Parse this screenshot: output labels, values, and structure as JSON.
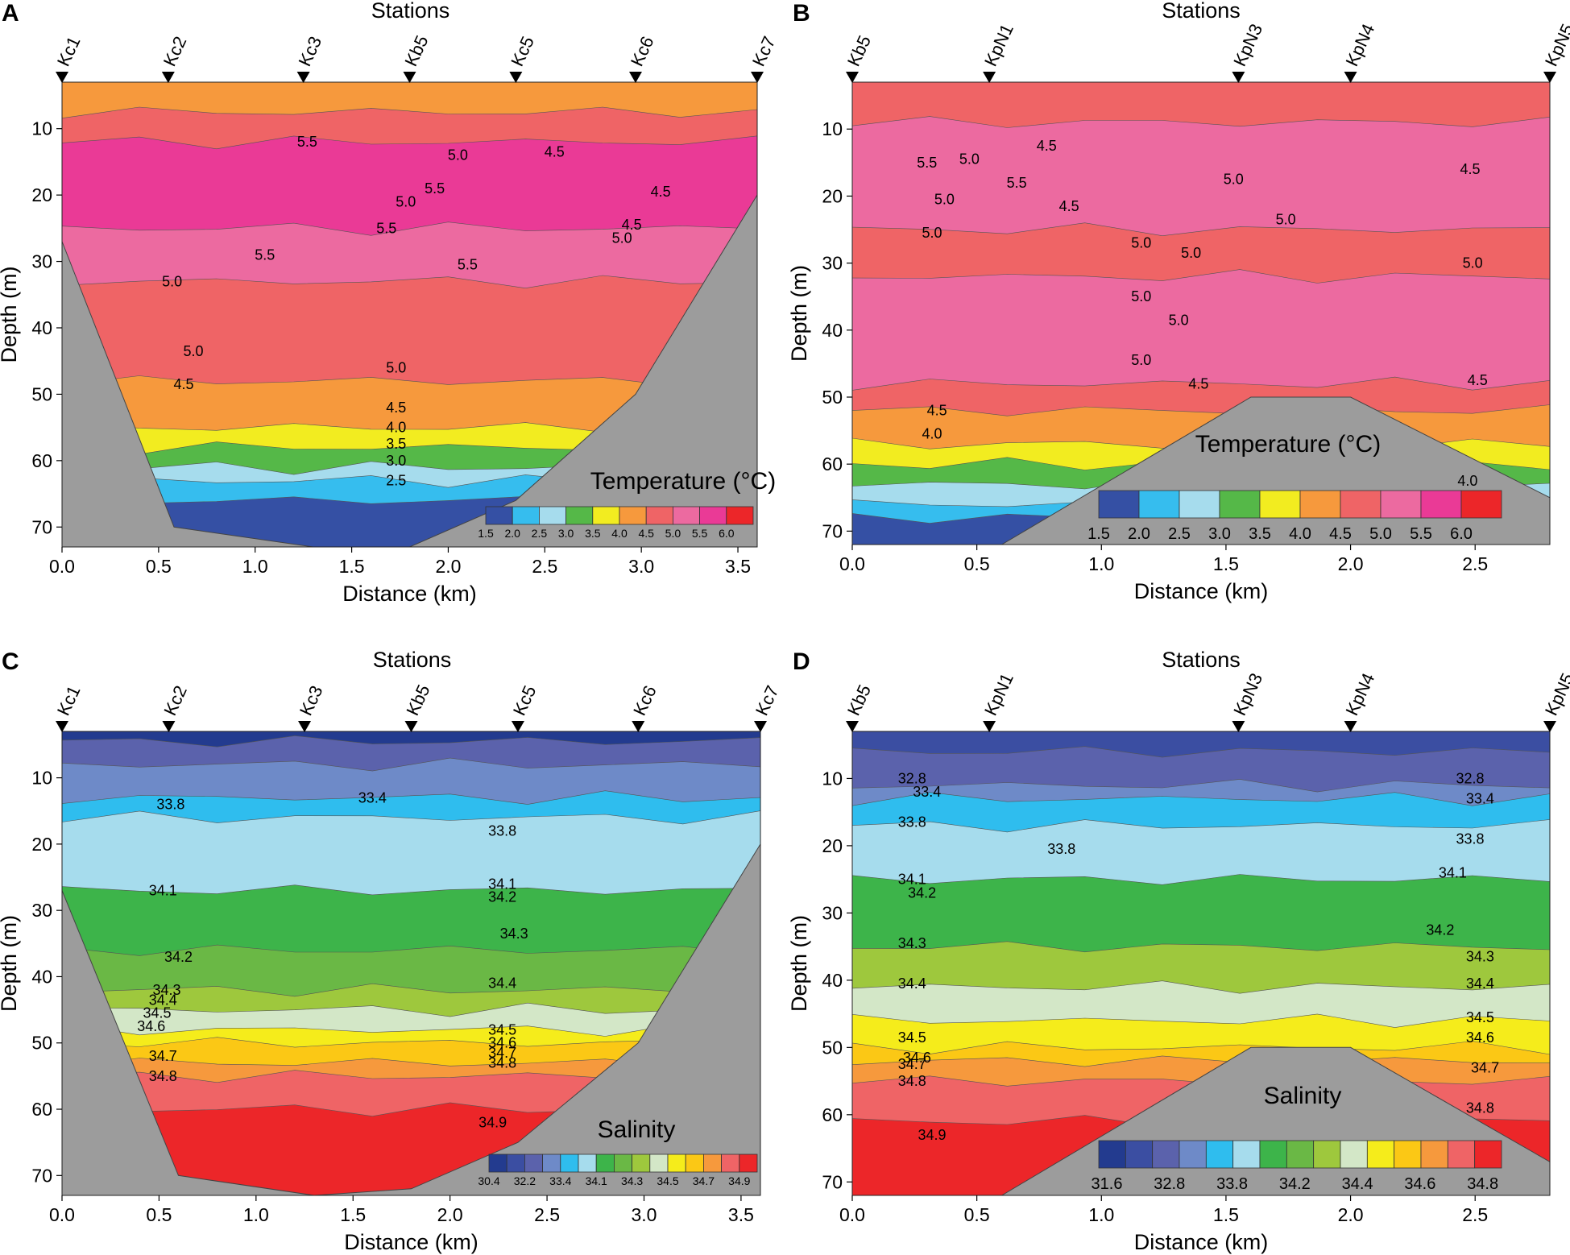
{
  "figure": {
    "colors": {
      "terrain": "#9c9c9c",
      "temperature": [
        "#3550a4",
        "#36bdee",
        "#a6dced",
        "#55b848",
        "#f2ec20",
        "#f6993d",
        "#ef6466",
        "#ec6aa0",
        "#ea3a96",
        "#ec2629"
      ],
      "salinity": [
        "#233b8f",
        "#3b4ea2",
        "#5b62ac",
        "#6e8ac8",
        "#2fbdee",
        "#a6dced",
        "#3db44a",
        "#6ab845",
        "#9ec83d",
        "#d3e7c7",
        "#f5ec1b",
        "#fbc815",
        "#f6993d",
        "#ef6466",
        "#ec2629"
      ]
    }
  },
  "chart_data": [
    {
      "panel": "A",
      "type": "contour",
      "title": "Stations",
      "xlabel": "Distance (km)",
      "ylabel": "Depth (m)",
      "xlim": [
        0,
        3.6
      ],
      "ylim": [
        73,
        3
      ],
      "xticks": [
        "0.0",
        "0.5",
        "1.0",
        "1.5",
        "2.0",
        "2.5",
        "3.0",
        "3.5"
      ],
      "yticks": [
        "10",
        "20",
        "30",
        "40",
        "50",
        "60",
        "70"
      ],
      "stations": [
        {
          "name": "Kc1",
          "x": 0.0
        },
        {
          "name": "Kc2",
          "x": 0.55
        },
        {
          "name": "Kc3",
          "x": 1.25
        },
        {
          "name": "Kb5",
          "x": 1.8
        },
        {
          "name": "Kc5",
          "x": 2.35
        },
        {
          "name": "Kc6",
          "x": 2.97
        },
        {
          "name": "Kc7",
          "x": 3.6
        }
      ],
      "colorbar": {
        "title": "Temperature (°C)",
        "labels": [
          "1.5",
          "2.0",
          "2.5",
          "3.0",
          "3.5",
          "4.0",
          "4.5",
          "5.0",
          "5.5",
          "6.0"
        ]
      },
      "bottom_profile": [
        {
          "x": 0.0,
          "depth": 27
        },
        {
          "x": 0.58,
          "depth": 70
        },
        {
          "x": 1.3,
          "depth": 73
        },
        {
          "x": 1.8,
          "depth": 73
        },
        {
          "x": 2.35,
          "depth": 66
        },
        {
          "x": 2.97,
          "depth": 50
        },
        {
          "x": 3.6,
          "depth": 20
        }
      ],
      "layers": [
        {
          "top": 3,
          "level": 5
        },
        {
          "top": 7.5,
          "level": 6
        },
        {
          "top": 12,
          "level": 8
        },
        {
          "top": 25,
          "level": 7
        },
        {
          "top": 33,
          "level": 6
        },
        {
          "top": 48,
          "level": 5
        },
        {
          "top": 55,
          "level": 4
        },
        {
          "top": 58,
          "level": 3
        },
        {
          "top": 61,
          "level": 2
        },
        {
          "top": 63,
          "level": 1
        },
        {
          "top": 66,
          "level": 0
        }
      ],
      "contour_labels": [
        {
          "text": "5.5",
          "x": 1.27,
          "depth": 12
        },
        {
          "text": "5.0",
          "x": 2.05,
          "depth": 14
        },
        {
          "text": "4.5",
          "x": 2.55,
          "depth": 13.5
        },
        {
          "text": "5.5",
          "x": 1.93,
          "depth": 19
        },
        {
          "text": "4.5",
          "x": 3.1,
          "depth": 19.5
        },
        {
          "text": "5.0",
          "x": 1.78,
          "depth": 21
        },
        {
          "text": "5.5",
          "x": 1.68,
          "depth": 25
        },
        {
          "text": "4.5",
          "x": 2.95,
          "depth": 24.5
        },
        {
          "text": "5.0",
          "x": 2.9,
          "depth": 26.5
        },
        {
          "text": "5.5",
          "x": 1.05,
          "depth": 29
        },
        {
          "text": "5.5",
          "x": 2.1,
          "depth": 30.5
        },
        {
          "text": "5.0",
          "x": 0.57,
          "depth": 33
        },
        {
          "text": "5.0",
          "x": 0.68,
          "depth": 43.5
        },
        {
          "text": "4.5",
          "x": 0.63,
          "depth": 48.5
        },
        {
          "text": "5.0",
          "x": 1.73,
          "depth": 46
        },
        {
          "text": "4.5",
          "x": 1.73,
          "depth": 52
        },
        {
          "text": "4.0",
          "x": 1.73,
          "depth": 55
        },
        {
          "text": "3.5",
          "x": 1.73,
          "depth": 57.5
        },
        {
          "text": "3.0",
          "x": 1.73,
          "depth": 60
        },
        {
          "text": "2.5",
          "x": 1.73,
          "depth": 63
        }
      ]
    },
    {
      "panel": "B",
      "type": "contour",
      "title": "Stations",
      "xlabel": "Distance (km)",
      "ylabel": "Depth (m)",
      "xlim": [
        0,
        2.8
      ],
      "ylim": [
        72,
        3
      ],
      "xticks": [
        "0.0",
        "0.5",
        "1.0",
        "1.5",
        "2.0",
        "2.5"
      ],
      "yticks": [
        "10",
        "20",
        "30",
        "40",
        "50",
        "60",
        "70"
      ],
      "stations": [
        {
          "name": "Kb5",
          "x": 0.0
        },
        {
          "name": "KpN1",
          "x": 0.55
        },
        {
          "name": "KpN3",
          "x": 1.55
        },
        {
          "name": "KpN4",
          "x": 2.0
        },
        {
          "name": "KpN5",
          "x": 2.8
        }
      ],
      "colorbar": {
        "title": "Temperature (°C)",
        "labels": [
          "1.5",
          "2.0",
          "2.5",
          "3.0",
          "3.5",
          "4.0",
          "4.5",
          "5.0",
          "5.5",
          "6.0"
        ]
      },
      "bottom_profile": [
        {
          "x": 0.0,
          "depth": 72
        },
        {
          "x": 0.6,
          "depth": 72
        },
        {
          "x": 1.6,
          "depth": 50
        },
        {
          "x": 2.0,
          "depth": 50
        },
        {
          "x": 2.8,
          "depth": 65
        }
      ],
      "layers": [
        {
          "top": 3,
          "level": 6
        },
        {
          "top": 9,
          "level": 7
        },
        {
          "top": 25,
          "level": 6
        },
        {
          "top": 32,
          "level": 7
        },
        {
          "top": 48,
          "level": 6
        },
        {
          "top": 52,
          "level": 5
        },
        {
          "top": 57,
          "level": 4
        },
        {
          "top": 60,
          "level": 3
        },
        {
          "top": 63,
          "level": 2
        },
        {
          "top": 66,
          "level": 1
        },
        {
          "top": 68,
          "level": 0
        }
      ],
      "contour_labels": [
        {
          "text": "4.5",
          "x": 0.78,
          "depth": 12.5
        },
        {
          "text": "5.5",
          "x": 0.3,
          "depth": 15
        },
        {
          "text": "5.0",
          "x": 0.47,
          "depth": 14.5
        },
        {
          "text": "5.5",
          "x": 0.66,
          "depth": 18
        },
        {
          "text": "5.0",
          "x": 1.53,
          "depth": 17.5
        },
        {
          "text": "4.5",
          "x": 2.48,
          "depth": 16
        },
        {
          "text": "5.0",
          "x": 0.37,
          "depth": 20.5
        },
        {
          "text": "4.5",
          "x": 0.87,
          "depth": 21.5
        },
        {
          "text": "5.0",
          "x": 1.74,
          "depth": 23.5
        },
        {
          "text": "5.0",
          "x": 0.32,
          "depth": 25.5
        },
        {
          "text": "5.0",
          "x": 1.16,
          "depth": 27
        },
        {
          "text": "5.0",
          "x": 1.36,
          "depth": 28.5
        },
        {
          "text": "5.0",
          "x": 2.49,
          "depth": 30
        },
        {
          "text": "5.0",
          "x": 1.16,
          "depth": 35
        },
        {
          "text": "5.0",
          "x": 1.31,
          "depth": 38.5
        },
        {
          "text": "5.0",
          "x": 1.16,
          "depth": 44.5
        },
        {
          "text": "4.5",
          "x": 1.39,
          "depth": 48
        },
        {
          "text": "4.5",
          "x": 2.51,
          "depth": 47.5
        },
        {
          "text": "4.5",
          "x": 0.34,
          "depth": 52
        },
        {
          "text": "4.0",
          "x": 0.32,
          "depth": 55.5
        },
        {
          "text": "4.0",
          "x": 2.47,
          "depth": 62.5
        }
      ]
    },
    {
      "panel": "C",
      "type": "contour",
      "title": "Stations",
      "xlabel": "Distance (km)",
      "ylabel": "Depth (m)",
      "xlim": [
        0,
        3.6
      ],
      "ylim": [
        73,
        3
      ],
      "xticks": [
        "0.0",
        "0.5",
        "1.0",
        "1.5",
        "2.0",
        "2.5",
        "3.0",
        "3.5"
      ],
      "yticks": [
        "10",
        "20",
        "30",
        "40",
        "50",
        "60",
        "70"
      ],
      "stations": [
        {
          "name": "Kc1",
          "x": 0.0
        },
        {
          "name": "Kc2",
          "x": 0.55
        },
        {
          "name": "Kc3",
          "x": 1.25
        },
        {
          "name": "Kb5",
          "x": 1.8
        },
        {
          "name": "Kc5",
          "x": 2.35
        },
        {
          "name": "Kc6",
          "x": 2.97
        },
        {
          "name": "Kc7",
          "x": 3.6
        }
      ],
      "colorbar": {
        "title": "Salinity",
        "labels": [
          "30.4",
          "32.2",
          "33.4",
          "34.1",
          "34.3",
          "34.5",
          "34.7",
          "34.9"
        ]
      },
      "bottom_profile": [
        {
          "x": 0.0,
          "depth": 27
        },
        {
          "x": 0.6,
          "depth": 70
        },
        {
          "x": 1.3,
          "depth": 73
        },
        {
          "x": 1.8,
          "depth": 72
        },
        {
          "x": 2.35,
          "depth": 65
        },
        {
          "x": 2.97,
          "depth": 50
        },
        {
          "x": 3.6,
          "depth": 20
        }
      ],
      "layers": [
        {
          "top": 3,
          "level": 0
        },
        {
          "top": 4.5,
          "level": 2
        },
        {
          "top": 8,
          "level": 3
        },
        {
          "top": 13,
          "level": 4
        },
        {
          "top": 16,
          "level": 5
        },
        {
          "top": 27,
          "level": 6
        },
        {
          "top": 36,
          "level": 7
        },
        {
          "top": 42,
          "level": 8
        },
        {
          "top": 45,
          "level": 9
        },
        {
          "top": 48,
          "level": 10
        },
        {
          "top": 50,
          "level": 11
        },
        {
          "top": 53,
          "level": 12
        },
        {
          "top": 55,
          "level": 13
        },
        {
          "top": 60,
          "level": 14
        }
      ],
      "contour_labels": [
        {
          "text": "33.8",
          "x": 0.56,
          "depth": 14
        },
        {
          "text": "33.4",
          "x": 1.6,
          "depth": 13
        },
        {
          "text": "33.8",
          "x": 2.27,
          "depth": 18
        },
        {
          "text": "34.1",
          "x": 0.52,
          "depth": 27
        },
        {
          "text": "34.1",
          "x": 2.27,
          "depth": 26
        },
        {
          "text": "34.2",
          "x": 2.27,
          "depth": 28
        },
        {
          "text": "34.3",
          "x": 2.33,
          "depth": 33.5
        },
        {
          "text": "34.2",
          "x": 0.6,
          "depth": 37
        },
        {
          "text": "34.4",
          "x": 2.27,
          "depth": 41
        },
        {
          "text": "34.3",
          "x": 0.54,
          "depth": 42
        },
        {
          "text": "34.4",
          "x": 0.52,
          "depth": 43.5
        },
        {
          "text": "34.5",
          "x": 0.49,
          "depth": 45.5
        },
        {
          "text": "34.6",
          "x": 0.46,
          "depth": 47.5
        },
        {
          "text": "34.5",
          "x": 2.27,
          "depth": 48
        },
        {
          "text": "34.6",
          "x": 2.27,
          "depth": 50
        },
        {
          "text": "34.7",
          "x": 2.27,
          "depth": 51.5
        },
        {
          "text": "34.7",
          "x": 0.52,
          "depth": 52
        },
        {
          "text": "34.8",
          "x": 2.27,
          "depth": 53
        },
        {
          "text": "34.8",
          "x": 0.52,
          "depth": 55
        },
        {
          "text": "34.9",
          "x": 2.22,
          "depth": 62
        }
      ]
    },
    {
      "panel": "D",
      "type": "contour",
      "title": "Stations",
      "xlabel": "Distance (km)",
      "ylabel": "Depth (m)",
      "xlim": [
        0,
        2.8
      ],
      "ylim": [
        72,
        3
      ],
      "xticks": [
        "0.0",
        "0.5",
        "1.0",
        "1.5",
        "2.0",
        "2.5"
      ],
      "yticks": [
        "10",
        "20",
        "30",
        "40",
        "50",
        "60",
        "70"
      ],
      "stations": [
        {
          "name": "Kb5",
          "x": 0.0
        },
        {
          "name": "KpN1",
          "x": 0.55
        },
        {
          "name": "KpN3",
          "x": 1.55
        },
        {
          "name": "KpN4",
          "x": 2.0
        },
        {
          "name": "KpN5",
          "x": 2.8
        }
      ],
      "colorbar": {
        "title": "Salinity",
        "labels": [
          "31.6",
          "32.8",
          "33.8",
          "34.2",
          "34.4",
          "34.6",
          "34.8"
        ]
      },
      "bottom_profile": [
        {
          "x": 0.0,
          "depth": 72
        },
        {
          "x": 0.6,
          "depth": 72
        },
        {
          "x": 1.6,
          "depth": 50
        },
        {
          "x": 2.0,
          "depth": 50
        },
        {
          "x": 2.8,
          "depth": 67
        }
      ],
      "layers": [
        {
          "top": 3,
          "level": 1
        },
        {
          "top": 6,
          "level": 2
        },
        {
          "top": 11,
          "level": 3
        },
        {
          "top": 13,
          "level": 4
        },
        {
          "top": 17,
          "level": 5
        },
        {
          "top": 25,
          "level": 6
        },
        {
          "top": 35,
          "level": 8
        },
        {
          "top": 41,
          "level": 9
        },
        {
          "top": 46,
          "level": 10
        },
        {
          "top": 50,
          "level": 11
        },
        {
          "top": 52,
          "level": 12
        },
        {
          "top": 55,
          "level": 13
        },
        {
          "top": 61,
          "level": 14
        }
      ],
      "contour_labels": [
        {
          "text": "32.8",
          "x": 0.24,
          "depth": 10
        },
        {
          "text": "32.8",
          "x": 2.48,
          "depth": 10
        },
        {
          "text": "33.4",
          "x": 0.3,
          "depth": 12
        },
        {
          "text": "33.4",
          "x": 2.52,
          "depth": 13
        },
        {
          "text": "33.8",
          "x": 0.24,
          "depth": 16.5
        },
        {
          "text": "33.8",
          "x": 2.48,
          "depth": 19
        },
        {
          "text": "33.8",
          "x": 0.84,
          "depth": 20.5
        },
        {
          "text": "34.1",
          "x": 0.24,
          "depth": 25
        },
        {
          "text": "34.1",
          "x": 2.41,
          "depth": 24
        },
        {
          "text": "34.2",
          "x": 0.28,
          "depth": 27
        },
        {
          "text": "34.2",
          "x": 2.36,
          "depth": 32.5
        },
        {
          "text": "34.3",
          "x": 0.24,
          "depth": 34.5
        },
        {
          "text": "34.3",
          "x": 2.52,
          "depth": 36.5
        },
        {
          "text": "34.4",
          "x": 0.24,
          "depth": 40.5
        },
        {
          "text": "34.4",
          "x": 2.52,
          "depth": 40.5
        },
        {
          "text": "34.5",
          "x": 2.52,
          "depth": 45.5
        },
        {
          "text": "34.5",
          "x": 0.24,
          "depth": 48.5
        },
        {
          "text": "34.6",
          "x": 2.52,
          "depth": 48.5
        },
        {
          "text": "34.6",
          "x": 0.26,
          "depth": 51.5
        },
        {
          "text": "34.7",
          "x": 0.24,
          "depth": 52.5
        },
        {
          "text": "34.7",
          "x": 2.54,
          "depth": 53
        },
        {
          "text": "34.8",
          "x": 0.24,
          "depth": 55
        },
        {
          "text": "34.8",
          "x": 2.52,
          "depth": 59
        },
        {
          "text": "34.9",
          "x": 0.32,
          "depth": 63
        }
      ]
    }
  ]
}
